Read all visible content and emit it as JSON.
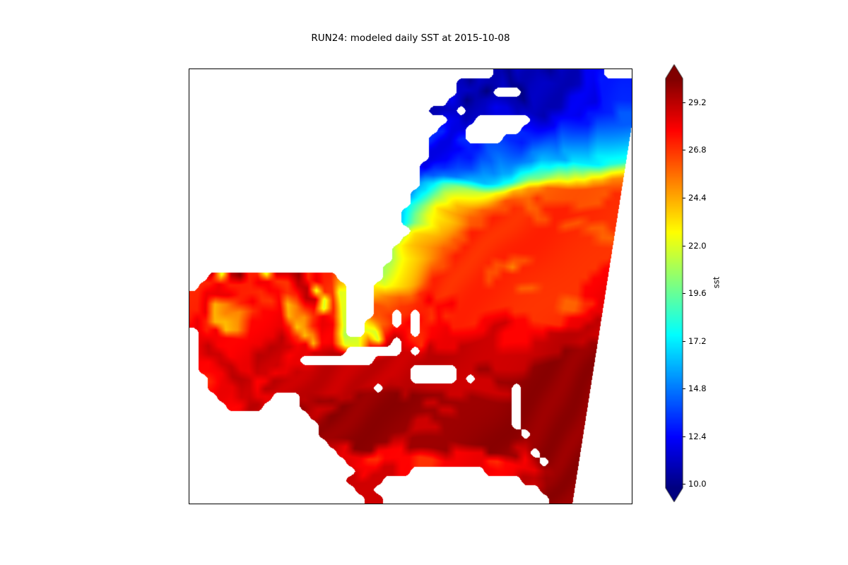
{
  "chart_data": {
    "type": "heatmap",
    "title": "RUN24: modeled daily SST at 2015-10-08",
    "run": "RUN24",
    "date": "2015-10-08",
    "colormap": "jet",
    "vmin": 9.8,
    "vmax": 30.4,
    "colorbar": {
      "label": "sst",
      "position": "right",
      "extend": "both",
      "ticks": [
        29.2,
        26.8,
        24.4,
        22.0,
        19.6,
        17.2,
        14.8,
        12.4,
        10.0
      ]
    },
    "domain_right_boundary": {
      "v_start": 0.13,
      "u_at_bottom": 0.866
    },
    "grid": {
      "legend": "each char is one cell of modeled SST in degC: a=10,b=11,c=12,d=13,e=14,f=15,g=16,h=17,i=18,j=19,k=20,l=21,m=22,n=23,o=24,p=25,q=26,r=27,s=28,t=29,u=30 ; '.' = land / outside model domain",
      "char0": "a",
      "temp0": 10,
      "step": 1,
      "cols": 48,
      "rows": [
        ".................................bbabbbabbbcc...",
        ".............................babbbbabbbbbbbccddd",
        ".............................bbba...abbbbccccddd",
        "............................cbabbbbbabbbbccccddd",
        "..........................bbb.bbbccbbbbccccdddde",
        "............................ccb......cccddddeeee",
        "...........................dcc......ddddeeeeffff",
        "..........................dccd....ddeeeeffffgggg",
        "..........................ccccddeeeeffffgggghhhh",
        "..........................cccddeeffffgggghhhhiii",
        ".........................dcddeeffgghhiijjkkllmmn",
        ".........................deeffgghiijkklmmnnooppq",
        ".........................fghjklmnnooppqqqqqqqqqq",
        "........................eghjlmnopqqqqrqqqqqqqrrr",
        "........................fhjlmopqqqrrqqrrrqqqrrrr",
        ".......................ehjlnopqqrrrrrqqrrrrrrrrr",
        ".......................fhkmnopqqrrrrrrrrqqrrrrrr",
        "........................hkmopqrrrrrrrrrrrrqqrrrr",
        ".......................jlnopqqrrrrrrrrrrrrrqqrrr",
        "......................kmnopqqrrrrrrrrrrrrrrrrrrr",
        "......................lmnopqrrrrrrrqqrrrrrrrrsss",
        ".....................lmnopqqrrrrrqqprrrrrrrrssss",
        "..tmturrmttursrr.....mnopqrrrrrrqqrrrrrrrrrsssss",
        ".rrsrrrssrrttmrrm...opqqrrrrrrrrqrrrrrrrrrssssss",
        "rrsssrrrssrrttmrm...qqrrrsrrrrrrrrrrqqrrrrssssss",
        "rrsoprsrrsoprsmrm...qrrrrrsssrrrrrrrrrrrqqrrssss",
        "rrsopprsssopprsrm...qr.s.rsrrrrrrrrrrrrrqqrssstt",
        "rsroopssssroprssm..mrs.r.sssrrrrsssrrrrrrssstttt",
        ".srsopssstsropssl..mstsr.ssssssssttssrrrrssttttt",
        ".ssssssstttssossmmsstt.srtssstttttsssssttttttttt",
        ".stsssstttssstttt......t.tttttttttssstttttttuuuu",
        ".sttssstttss........tttttttttttttttttttttuuuuuuu",
        ".ssttssttssttttttttttttt.....ttuuttttuuuuuuuuuuu",
        "..sstttssttttttttttttttt.....t.ttuuuuuuuuuuuuuuu",
        "..rssttstttttttttttt.tttttttttttttt.uuuuuuuuuuuuu",
        "...ssttss...tuuttuuuuutuuuuuttuuuuu.uuuuuuuuuuuu",
        "....sstt....uttuuuuuuuuuuttuuuuuuuu.uuuuuuuuuuuu",
        ".............tuuuuuuuuuuuuuttuuuuuu.uuuuuuuuuuuu",
        "..............uuuuuuuuuuttuuuuuuuuu.uuuuuuuuuuuu",
        "..............uuuuuuuuuutttuuuuuuuuu.uuuuuuuuuuu",
        "...............uuuuuuuttuuuuuuuuuuuttuuuuuuuuuuu",
        "................suuussssuuuussssuuuus.uuuuuuuuuu",
        ".................ssrrssssrrsssssrrssss.uuuuuuuuu",
        "..................ssstts........ssssttuuuuuuuuuu",
        ".................ttst...............ttuuuuuuuuuu",
        "..................tt..................uuuuuuuuuu",
        "...................tt..................uuuuuuuuu"
      ]
    }
  }
}
